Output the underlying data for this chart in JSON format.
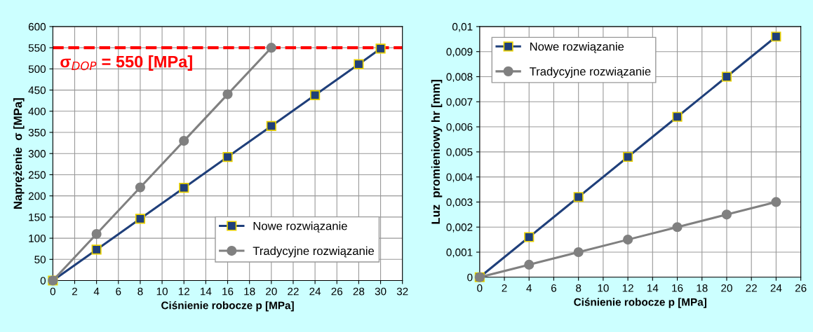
{
  "chart_data": [
    {
      "type": "line",
      "xlabel": "Ciśnienie robocze p [MPa]",
      "ylabel": "Naprężenie  σ [MPa]",
      "series": [
        {
          "name": "Nowe rozwiązanie",
          "color": "#1f3f7a",
          "marker": "square",
          "x": [
            0,
            4,
            8,
            12,
            16,
            20,
            24,
            28,
            30
          ],
          "values": [
            0,
            73,
            146,
            219,
            292,
            365,
            438,
            511,
            548
          ]
        },
        {
          "name": "Tradycyjne rozwiązanie",
          "color": "#808080",
          "marker": "circle",
          "x": [
            0,
            4,
            8,
            12,
            16,
            20
          ],
          "values": [
            0,
            110,
            220,
            330,
            440,
            550
          ]
        }
      ],
      "xlim": [
        0,
        32
      ],
      "xticks": [
        0,
        2,
        4,
        6,
        8,
        10,
        12,
        14,
        16,
        18,
        20,
        22,
        24,
        26,
        28,
        30,
        32
      ],
      "ylim": [
        0,
        600
      ],
      "yticks": [
        0,
        50,
        100,
        150,
        200,
        250,
        300,
        350,
        400,
        450,
        500,
        550,
        600
      ],
      "ref_lines": [
        {
          "axis": "y",
          "value": 550,
          "label": "σ$_{DOP}$ = 550 [MPa]",
          "color": "#ff0000",
          "line_style": "dashed"
        }
      ],
      "grid": true,
      "legend": "bottom right",
      "line_style": "solid"
    },
    {
      "type": "line",
      "xlabel": "Ciśnienie robocze p [MPa]",
      "ylabel": "Luz  promieniowy hr [mm]",
      "series": [
        {
          "name": "Nowe rozwiązanie",
          "color": "#1f3f7a",
          "marker": "square",
          "x": [
            0,
            4,
            8,
            12,
            16,
            20,
            24
          ],
          "values": [
            0,
            0.0016,
            0.0032,
            0.0048,
            0.0064,
            0.008,
            0.0096
          ]
        },
        {
          "name": "Tradycyjne rozwiązanie",
          "color": "#808080",
          "marker": "circle",
          "x": [
            0,
            4,
            8,
            12,
            16,
            20,
            24
          ],
          "values": [
            0,
            0.0005,
            0.001,
            0.0015,
            0.002,
            0.0025,
            0.003
          ]
        }
      ],
      "xlim": [
        0,
        26
      ],
      "xticks": [
        0,
        2,
        4,
        6,
        8,
        10,
        12,
        14,
        16,
        18,
        20,
        22,
        24,
        26
      ],
      "ylim": [
        0,
        0.01
      ],
      "yticks": [
        0,
        {
          "value": 0.001,
          "label": "0,001"
        },
        {
          "value": 0.002,
          "label": "0,002"
        },
        {
          "value": 0.003,
          "label": "0,003"
        },
        {
          "value": 0.004,
          "label": "0,004"
        },
        {
          "value": 0.005,
          "label": "0,005"
        },
        {
          "value": 0.006,
          "label": "0,006"
        },
        {
          "value": 0.007,
          "label": "0,007"
        },
        {
          "value": 0.008,
          "label": "0,008"
        },
        {
          "value": 0.009,
          "label": "0,009"
        },
        {
          "value": 0.01,
          "label": "0,01"
        }
      ],
      "grid": true,
      "legend": "top left",
      "line_style": "solid"
    }
  ]
}
